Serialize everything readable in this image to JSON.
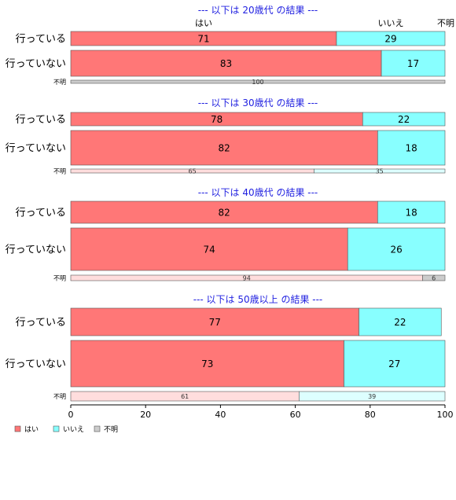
{
  "chart_data": {
    "type": "bar",
    "orientation": "horizontal-stacked",
    "xlim": [
      0,
      100
    ],
    "x_ticks": [
      "0",
      "20",
      "40",
      "60",
      "80",
      "100"
    ],
    "header_labels": [
      "はい",
      "いいえ",
      "不明"
    ],
    "legend": [
      {
        "name": "はい",
        "color": "#ff7777"
      },
      {
        "name": "いいえ",
        "color": "#88ffff"
      },
      {
        "name": "不明",
        "color": "#cccccc"
      }
    ],
    "sections": [
      {
        "title": "--- 以下は 20歳代 の結果 ---",
        "rows": [
          {
            "label": "行っている",
            "values": [
              71,
              29,
              0
            ]
          },
          {
            "label": "行っていない",
            "values": [
              83,
              17,
              0
            ]
          },
          {
            "label": "不明",
            "values": [
              0,
              0,
              100
            ]
          }
        ]
      },
      {
        "title": "--- 以下は 30歳代 の結果 ---",
        "rows": [
          {
            "label": "行っている",
            "values": [
              78,
              22,
              0
            ]
          },
          {
            "label": "行っていない",
            "values": [
              82,
              18,
              0
            ]
          },
          {
            "label": "不明",
            "values": [
              65,
              35,
              0
            ]
          }
        ]
      },
      {
        "title": "--- 以下は 40歳代 の結果 ---",
        "rows": [
          {
            "label": "行っている",
            "values": [
              82,
              18,
              0
            ]
          },
          {
            "label": "行っていない",
            "values": [
              74,
              26,
              0
            ]
          },
          {
            "label": "不明",
            "values": [
              94,
              0,
              6
            ]
          }
        ]
      },
      {
        "title": "--- 以下は 50歳以上 の結果 ---",
        "rows": [
          {
            "label": "行っている",
            "values": [
              77,
              22,
              0
            ]
          },
          {
            "label": "行っていない",
            "values": [
              73,
              27,
              0
            ]
          },
          {
            "label": "不明",
            "values": [
              61,
              39,
              0
            ]
          }
        ]
      }
    ]
  }
}
